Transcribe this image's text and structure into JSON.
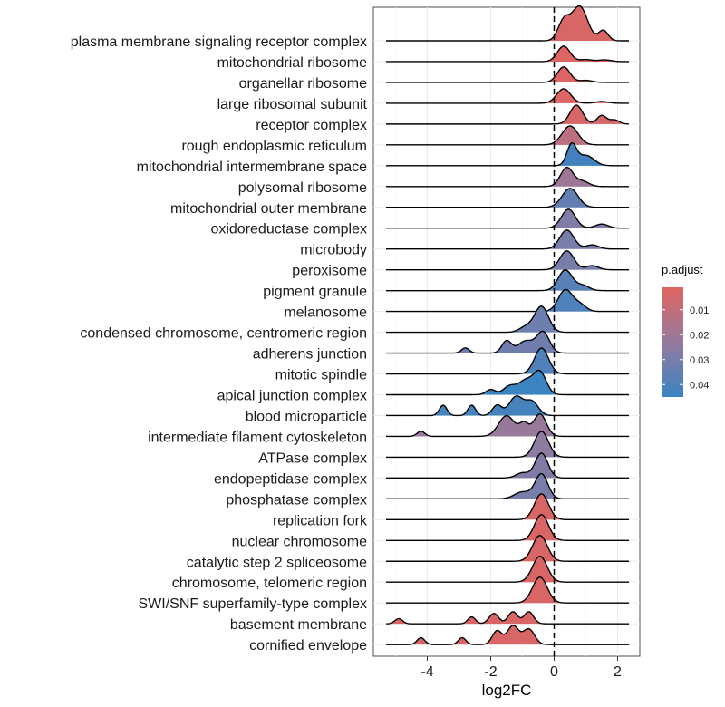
{
  "chart_data": {
    "type": "ridgeline",
    "xlabel": "log2FC",
    "x_ticks": [
      -4,
      -2,
      0,
      2
    ],
    "xlim": [
      -5.7,
      2.7
    ],
    "reference_line_x": 0,
    "grid": true,
    "legend": {
      "title": "p.adjust",
      "position": "right",
      "ticks": [
        0.01,
        0.02,
        0.03,
        0.04
      ],
      "tick_labels": [
        "0.01",
        "0.02",
        "0.03",
        "0.04"
      ],
      "range": [
        0.001,
        0.045
      ],
      "color_low": "#E06460",
      "color_mid": "#957A9E",
      "color_high": "#3A84C2"
    },
    "series": [
      {
        "name": "plasma membrane signaling receptor complex",
        "p_adjust": 0.003,
        "peaks": [
          {
            "x": 0.3,
            "h": 0.55,
            "s": 0.18
          },
          {
            "x": 0.8,
            "h": 1.0,
            "s": 0.25
          },
          {
            "x": 1.55,
            "h": 0.3,
            "s": 0.15
          }
        ]
      },
      {
        "name": "mitochondrial ribosome",
        "p_adjust": 0.002,
        "peaks": [
          {
            "x": 0.3,
            "h": 0.45,
            "s": 0.2
          },
          {
            "x": 1.0,
            "h": 0.06,
            "s": 0.2
          },
          {
            "x": 1.6,
            "h": 0.05,
            "s": 0.2
          }
        ]
      },
      {
        "name": "organellar ribosome",
        "p_adjust": 0.002,
        "peaks": [
          {
            "x": 0.3,
            "h": 0.45,
            "s": 0.2
          },
          {
            "x": 1.0,
            "h": 0.06,
            "s": 0.2
          }
        ]
      },
      {
        "name": "large ribosomal subunit",
        "p_adjust": 0.002,
        "peaks": [
          {
            "x": 0.3,
            "h": 0.42,
            "s": 0.22
          },
          {
            "x": 1.5,
            "h": 0.05,
            "s": 0.2
          }
        ]
      },
      {
        "name": "receptor complex",
        "p_adjust": 0.004,
        "peaks": [
          {
            "x": 0.7,
            "h": 0.55,
            "s": 0.2
          },
          {
            "x": 1.5,
            "h": 0.25,
            "s": 0.15
          },
          {
            "x": 1.9,
            "h": 0.12,
            "s": 0.15
          }
        ]
      },
      {
        "name": "rough endoplasmic reticulum",
        "p_adjust": 0.012,
        "peaks": [
          {
            "x": 0.5,
            "h": 0.55,
            "s": 0.25
          }
        ]
      },
      {
        "name": "mitochondrial intermembrane space",
        "p_adjust": 0.043,
        "peaks": [
          {
            "x": 0.55,
            "h": 0.6,
            "s": 0.15
          },
          {
            "x": 1.0,
            "h": 0.3,
            "s": 0.25
          }
        ]
      },
      {
        "name": "polysomal ribosome",
        "p_adjust": 0.02,
        "peaks": [
          {
            "x": 0.4,
            "h": 0.55,
            "s": 0.2
          },
          {
            "x": 0.9,
            "h": 0.15,
            "s": 0.2
          }
        ]
      },
      {
        "name": "mitochondrial outer membrane",
        "p_adjust": 0.035,
        "peaks": [
          {
            "x": 0.5,
            "h": 0.55,
            "s": 0.25
          }
        ]
      },
      {
        "name": "oxidoreductase complex",
        "p_adjust": 0.028,
        "peaks": [
          {
            "x": 0.45,
            "h": 0.55,
            "s": 0.22
          },
          {
            "x": 1.5,
            "h": 0.12,
            "s": 0.2
          }
        ]
      },
      {
        "name": "microbody",
        "p_adjust": 0.03,
        "peaks": [
          {
            "x": 0.4,
            "h": 0.55,
            "s": 0.22
          },
          {
            "x": 1.2,
            "h": 0.12,
            "s": 0.2
          }
        ]
      },
      {
        "name": "peroxisome",
        "p_adjust": 0.03,
        "peaks": [
          {
            "x": 0.4,
            "h": 0.55,
            "s": 0.22
          },
          {
            "x": 1.2,
            "h": 0.12,
            "s": 0.2
          }
        ]
      },
      {
        "name": "pigment granule",
        "p_adjust": 0.038,
        "peaks": [
          {
            "x": 0.35,
            "h": 0.6,
            "s": 0.22
          },
          {
            "x": 0.9,
            "h": 0.15,
            "s": 0.2
          }
        ]
      },
      {
        "name": "melanosome",
        "p_adjust": 0.04,
        "peaks": [
          {
            "x": 0.35,
            "h": 0.62,
            "s": 0.22
          },
          {
            "x": 0.8,
            "h": 0.2,
            "s": 0.2
          }
        ]
      },
      {
        "name": "condensed chromosome, centromeric region",
        "p_adjust": 0.033,
        "peaks": [
          {
            "x": -0.4,
            "h": 0.75,
            "s": 0.22
          },
          {
            "x": -0.9,
            "h": 0.15,
            "s": 0.2
          }
        ]
      },
      {
        "name": "adherens junction",
        "p_adjust": 0.032,
        "peaks": [
          {
            "x": -2.8,
            "h": 0.15,
            "s": 0.12
          },
          {
            "x": -1.5,
            "h": 0.35,
            "s": 0.15
          },
          {
            "x": -0.9,
            "h": 0.35,
            "s": 0.25
          },
          {
            "x": -0.35,
            "h": 0.6,
            "s": 0.2
          }
        ]
      },
      {
        "name": "mitotic spindle",
        "p_adjust": 0.04,
        "peaks": [
          {
            "x": -0.4,
            "h": 0.75,
            "s": 0.22
          }
        ]
      },
      {
        "name": "apical junction complex",
        "p_adjust": 0.045,
        "peaks": [
          {
            "x": -2.0,
            "h": 0.15,
            "s": 0.15
          },
          {
            "x": -1.4,
            "h": 0.25,
            "s": 0.2
          },
          {
            "x": -0.9,
            "h": 0.4,
            "s": 0.22
          },
          {
            "x": -0.45,
            "h": 0.65,
            "s": 0.2
          }
        ]
      },
      {
        "name": "blood microparticle",
        "p_adjust": 0.042,
        "peaks": [
          {
            "x": -3.5,
            "h": 0.3,
            "s": 0.12
          },
          {
            "x": -2.6,
            "h": 0.3,
            "s": 0.12
          },
          {
            "x": -1.8,
            "h": 0.3,
            "s": 0.15
          },
          {
            "x": -1.2,
            "h": 0.55,
            "s": 0.22
          },
          {
            "x": -0.7,
            "h": 0.4,
            "s": 0.2
          }
        ]
      },
      {
        "name": "intermediate filament cytoskeleton",
        "p_adjust": 0.022,
        "peaks": [
          {
            "x": -4.2,
            "h": 0.15,
            "s": 0.12
          },
          {
            "x": -1.5,
            "h": 0.6,
            "s": 0.25
          },
          {
            "x": -0.95,
            "h": 0.35,
            "s": 0.15
          },
          {
            "x": -0.45,
            "h": 0.65,
            "s": 0.2
          }
        ]
      },
      {
        "name": "ATPase complex",
        "p_adjust": 0.025,
        "peaks": [
          {
            "x": -0.4,
            "h": 0.75,
            "s": 0.22
          }
        ]
      },
      {
        "name": "endopeptidase complex",
        "p_adjust": 0.028,
        "peaks": [
          {
            "x": -1.0,
            "h": 0.15,
            "s": 0.2
          },
          {
            "x": -0.4,
            "h": 0.72,
            "s": 0.2
          }
        ]
      },
      {
        "name": "phosphatase complex",
        "p_adjust": 0.03,
        "peaks": [
          {
            "x": -1.0,
            "h": 0.2,
            "s": 0.25
          },
          {
            "x": -0.4,
            "h": 0.72,
            "s": 0.2
          }
        ]
      },
      {
        "name": "replication fork",
        "p_adjust": 0.003,
        "peaks": [
          {
            "x": -0.4,
            "h": 0.75,
            "s": 0.22
          }
        ]
      },
      {
        "name": "nuclear chromosome",
        "p_adjust": 0.003,
        "peaks": [
          {
            "x": -0.4,
            "h": 0.75,
            "s": 0.22
          }
        ]
      },
      {
        "name": "catalytic step 2 spliceosome",
        "p_adjust": 0.003,
        "peaks": [
          {
            "x": -0.45,
            "h": 0.75,
            "s": 0.23
          }
        ]
      },
      {
        "name": "chromosome, telomeric region",
        "p_adjust": 0.003,
        "peaks": [
          {
            "x": -0.45,
            "h": 0.75,
            "s": 0.23
          }
        ]
      },
      {
        "name": "SWI/SNF superfamily-type complex",
        "p_adjust": 0.003,
        "peaks": [
          {
            "x": -0.45,
            "h": 0.75,
            "s": 0.23
          }
        ]
      },
      {
        "name": "basement membrane",
        "p_adjust": 0.003,
        "peaks": [
          {
            "x": -4.9,
            "h": 0.15,
            "s": 0.12
          },
          {
            "x": -2.6,
            "h": 0.2,
            "s": 0.12
          },
          {
            "x": -1.9,
            "h": 0.3,
            "s": 0.15
          },
          {
            "x": -1.3,
            "h": 0.35,
            "s": 0.15
          },
          {
            "x": -0.8,
            "h": 0.35,
            "s": 0.15
          }
        ]
      },
      {
        "name": "cornified envelope",
        "p_adjust": 0.003,
        "peaks": [
          {
            "x": -4.2,
            "h": 0.2,
            "s": 0.12
          },
          {
            "x": -2.9,
            "h": 0.2,
            "s": 0.12
          },
          {
            "x": -1.8,
            "h": 0.4,
            "s": 0.15
          },
          {
            "x": -1.3,
            "h": 0.55,
            "s": 0.18
          },
          {
            "x": -0.8,
            "h": 0.45,
            "s": 0.18
          }
        ]
      }
    ]
  }
}
